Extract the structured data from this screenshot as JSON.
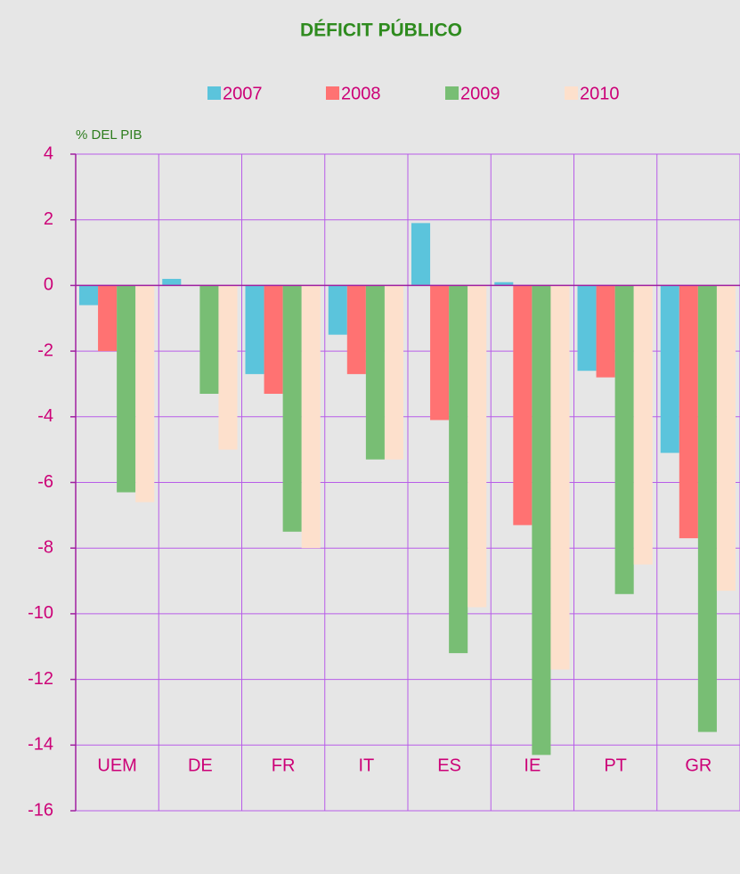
{
  "chart_data": {
    "type": "bar",
    "title": "DÉFICIT PÚBLICO",
    "y_axis_label": "% DEL PIB",
    "categories": [
      "UEM",
      "DE",
      "FR",
      "IT",
      "ES",
      "IE",
      "PT",
      "GR"
    ],
    "series": [
      {
        "name": "2007",
        "color": "#5bc4dc",
        "values": [
          -0.6,
          0.2,
          -2.7,
          -1.5,
          1.9,
          0.1,
          -2.6,
          -5.1
        ]
      },
      {
        "name": "2008",
        "color": "#ff7272",
        "values": [
          -2.0,
          0,
          -3.3,
          -2.7,
          -4.1,
          -7.3,
          -2.8,
          -7.7
        ]
      },
      {
        "name": "2009",
        "color": "#78be74",
        "values": [
          -6.3,
          -3.3,
          -7.5,
          -5.3,
          -11.2,
          -14.3,
          -9.4,
          -13.6
        ]
      },
      {
        "name": "2010",
        "color": "#fde0cc",
        "values": [
          -6.6,
          -5.0,
          -8.0,
          -5.3,
          -9.8,
          -11.7,
          -8.5,
          -9.3
        ]
      }
    ],
    "ylim": [
      -16,
      4
    ],
    "yticks": [
      -16,
      -14,
      -12,
      -10,
      -8,
      -6,
      -4,
      -2,
      0,
      2,
      4
    ],
    "grid": true
  }
}
